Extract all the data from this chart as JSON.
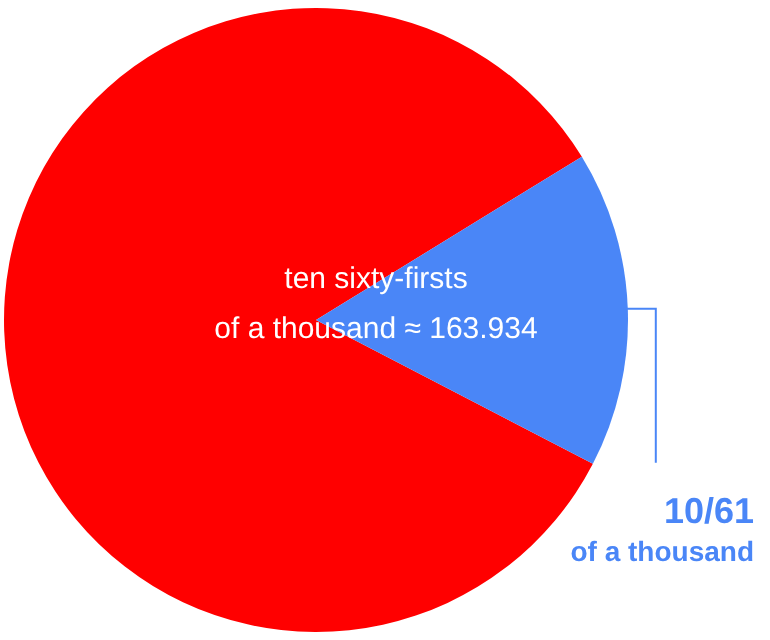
{
  "chart_data": {
    "type": "pie",
    "categories": [
      null,
      "10/61 of a thousand"
    ],
    "values": [
      83.61,
      16.39
    ],
    "colors": [
      "#ff0000",
      "#4a86f7"
    ],
    "annotations": [
      "ten sixty-firsts of a thousand ≈ 163.934"
    ]
  }
}
